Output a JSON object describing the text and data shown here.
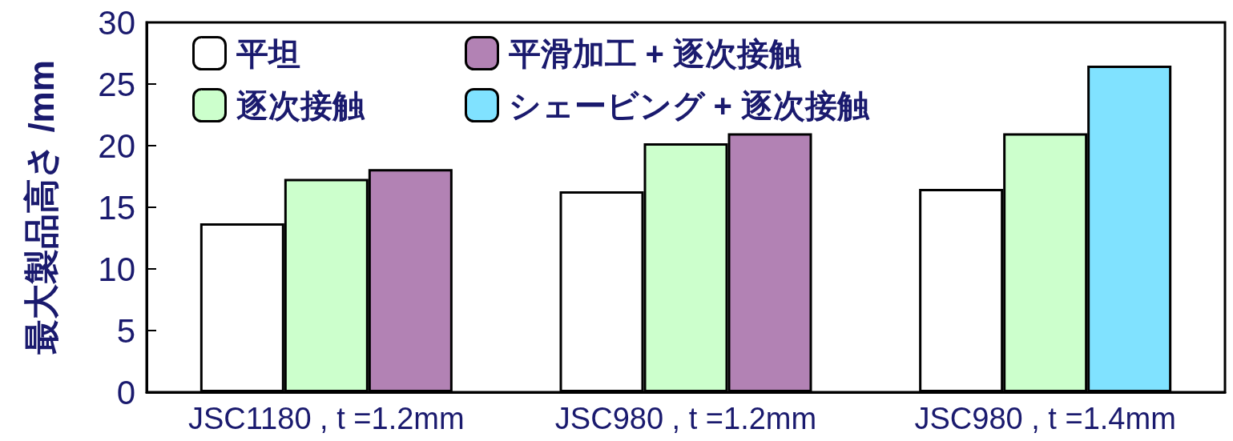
{
  "chart_data": {
    "type": "bar",
    "ylabel": "最大製品高さ /mm",
    "categories": [
      "JSC1180 , t =1.2mm",
      "JSC980 , t =1.2mm",
      "JSC980 , t =1.4mm"
    ],
    "series": [
      {
        "name": "平坦",
        "color": "#ffffff",
        "values": [
          13.7,
          16.3,
          16.5
        ]
      },
      {
        "name": "逐次接触",
        "color": "#ccffcc",
        "values": [
          17.3,
          20.2,
          21.0
        ]
      },
      {
        "name": "平滑加工 + 逐次接触",
        "color": "#b282b4",
        "values": [
          18.1,
          21.0,
          null
        ]
      },
      {
        "name": "シェービング + 逐次接触",
        "color": "#80e2ff",
        "values": [
          null,
          null,
          26.5
        ]
      }
    ],
    "ylim": [
      0,
      30
    ],
    "yticks": [
      0,
      5,
      10,
      15,
      20,
      25,
      30
    ],
    "grid": false,
    "legend": "top left"
  }
}
